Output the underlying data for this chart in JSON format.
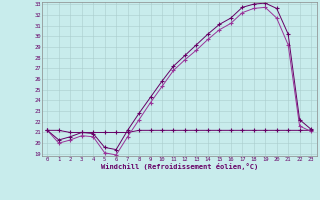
{
  "xlabel": "Windchill (Refroidissement éolien,°C)",
  "bg_color": "#c8ecec",
  "line_color1": "#993399",
  "line_color2": "#660066",
  "line_color3": "#993399",
  "grid_color": "#aacccc",
  "ylim": [
    18.8,
    33.2
  ],
  "xlim": [
    -0.5,
    23.5
  ],
  "yticks": [
    19,
    20,
    21,
    22,
    23,
    24,
    25,
    26,
    27,
    28,
    29,
    30,
    31,
    32,
    33
  ],
  "xticks": [
    0,
    1,
    2,
    3,
    4,
    5,
    6,
    7,
    8,
    9,
    10,
    11,
    12,
    13,
    14,
    15,
    16,
    17,
    18,
    19,
    20,
    21,
    22,
    23
  ],
  "line1_x": [
    0,
    1,
    2,
    3,
    4,
    5,
    6,
    7,
    8,
    9,
    10,
    11,
    12,
    13,
    14,
    15,
    16,
    17,
    18,
    19,
    20,
    21,
    22,
    23
  ],
  "line1_y": [
    21.2,
    20.0,
    20.3,
    20.7,
    20.6,
    19.1,
    18.9,
    20.6,
    22.2,
    23.8,
    25.3,
    26.8,
    27.8,
    28.7,
    29.7,
    30.6,
    31.2,
    32.2,
    32.6,
    32.7,
    31.7,
    29.2,
    21.6,
    21.1
  ],
  "line2_x": [
    0,
    1,
    2,
    3,
    4,
    5,
    6,
    7,
    8,
    9,
    10,
    11,
    12,
    13,
    14,
    15,
    16,
    17,
    18,
    19,
    20,
    21,
    22,
    23
  ],
  "line2_y": [
    21.2,
    20.3,
    20.6,
    21.0,
    20.9,
    19.6,
    19.4,
    21.2,
    22.8,
    24.3,
    25.8,
    27.2,
    28.2,
    29.2,
    30.2,
    31.1,
    31.7,
    32.7,
    33.0,
    33.1,
    32.6,
    30.2,
    22.2,
    21.3
  ],
  "line3_x": [
    0,
    1,
    2,
    3,
    4,
    5,
    6,
    7,
    8,
    9,
    10,
    11,
    12,
    13,
    14,
    15,
    16,
    17,
    18,
    19,
    20,
    21,
    22,
    23
  ],
  "line3_y": [
    21.2,
    21.2,
    21.0,
    21.0,
    21.0,
    21.0,
    21.0,
    21.0,
    21.2,
    21.2,
    21.2,
    21.2,
    21.2,
    21.2,
    21.2,
    21.2,
    21.2,
    21.2,
    21.2,
    21.2,
    21.2,
    21.2,
    21.2,
    21.2
  ]
}
